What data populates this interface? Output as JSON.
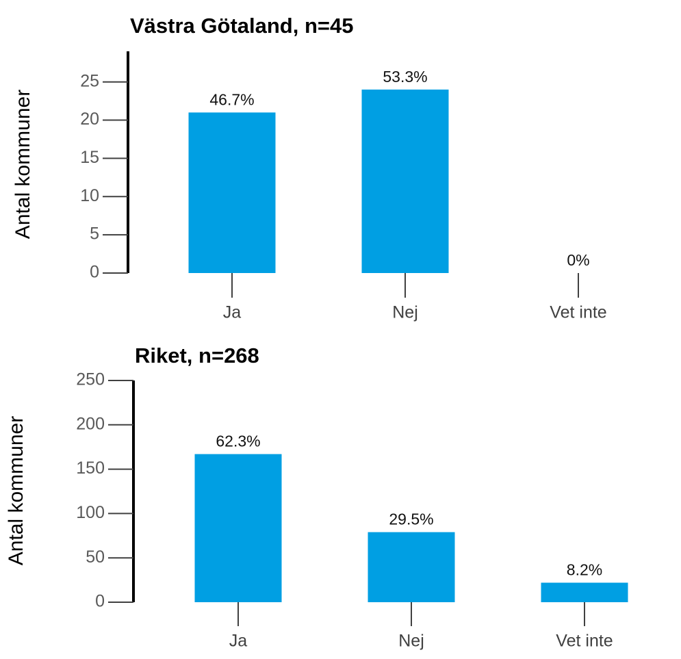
{
  "chart_data": [
    {
      "type": "bar",
      "title": "Västra Götaland, n=45",
      "y_label": "Antal kommuner",
      "categories": [
        "Ja",
        "Nej",
        "Vet inte"
      ],
      "values": [
        21,
        24,
        0
      ],
      "percent_labels": [
        "46.7%",
        "53.3%",
        "0%"
      ],
      "color": "#009fe3",
      "ylim": [
        0,
        29
      ],
      "yticks": [
        0,
        5,
        10,
        15,
        20,
        25
      ]
    },
    {
      "type": "bar",
      "title": "Riket, n=268",
      "y_label": "Antal kommuner",
      "categories": [
        "Ja",
        "Nej",
        "Vet inte"
      ],
      "values": [
        167,
        79,
        22
      ],
      "percent_labels": [
        "62.3%",
        "29.5%",
        "8.2%"
      ],
      "color": "#009fe3",
      "ylim": [
        0,
        250
      ],
      "yticks": [
        0,
        50,
        100,
        150,
        200,
        250
      ]
    }
  ]
}
